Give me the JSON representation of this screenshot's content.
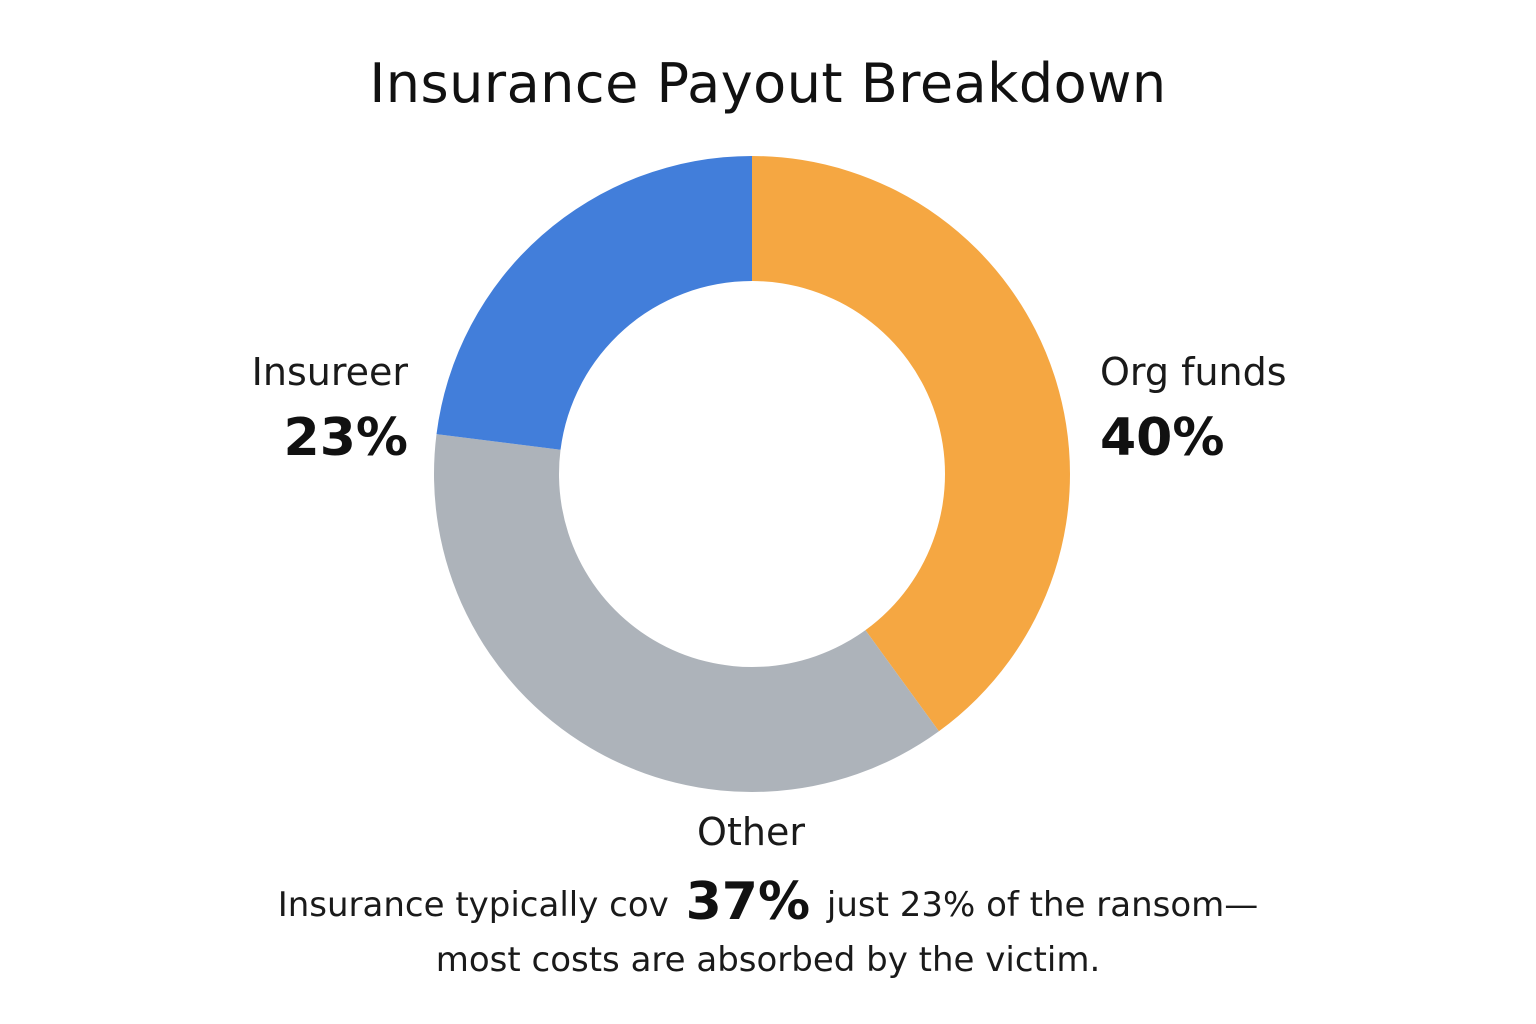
{
  "chart_data": {
    "type": "pie",
    "title": "Insurance Payout Breakdown",
    "categories": [
      "Org funds",
      "Other",
      "Insureer"
    ],
    "labels": [
      "40%",
      "37%",
      "23%"
    ],
    "values": [
      40,
      37,
      23
    ],
    "colors": [
      "#F5A742",
      "#ADB3BA",
      "#427EDA"
    ],
    "donut": true
  },
  "caption": {
    "part1": "Insurance typically cov",
    "emphasis": "37%",
    "part2": "just 23% of the ransom—",
    "line2": "most costs are absorbed by the victim."
  }
}
